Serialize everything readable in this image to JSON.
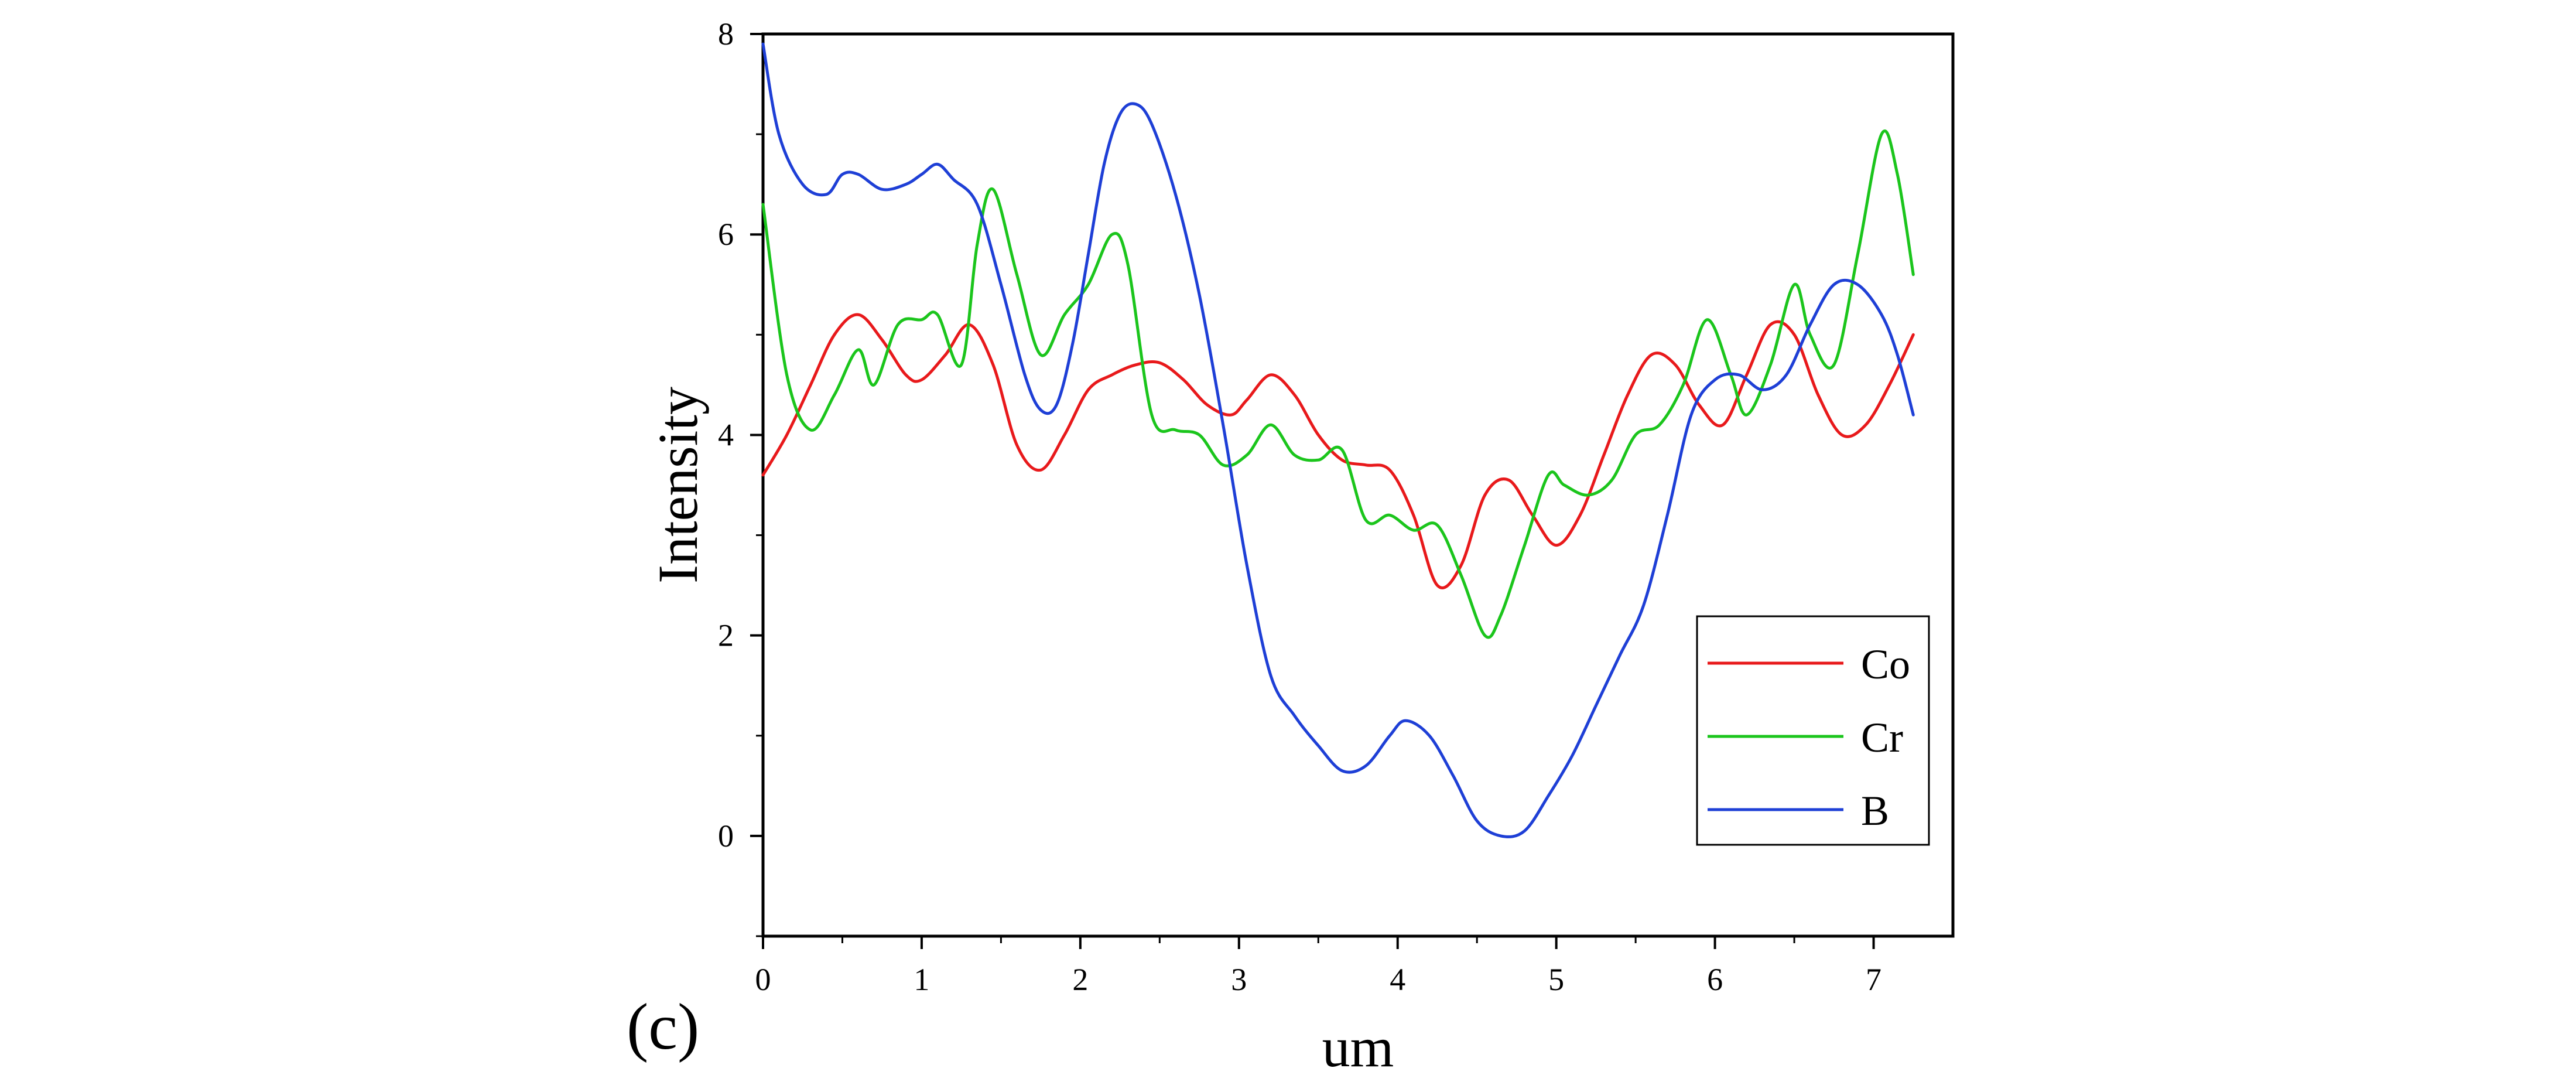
{
  "chart_data": {
    "type": "line",
    "panel_label": "(c)",
    "xlabel": "um",
    "ylabel": "Intensity",
    "xlim": [
      0,
      7.5
    ],
    "ylim": [
      -1,
      8
    ],
    "xticks": [
      0,
      1,
      2,
      3,
      4,
      5,
      6,
      7
    ],
    "yticks": [
      0,
      2,
      4,
      6,
      8
    ],
    "grid": false,
    "legend_position": "bottom-right",
    "series": [
      {
        "name": "Co",
        "color": "#e8191b",
        "x": [
          0,
          0.15,
          0.3,
          0.45,
          0.6,
          0.75,
          0.9,
          1.0,
          1.15,
          1.3,
          1.45,
          1.6,
          1.75,
          1.9,
          2.05,
          2.2,
          2.35,
          2.5,
          2.65,
          2.8,
          2.95,
          3.05,
          3.2,
          3.35,
          3.5,
          3.65,
          3.8,
          3.95,
          4.1,
          4.25,
          4.4,
          4.55,
          4.7,
          4.85,
          5.0,
          5.15,
          5.3,
          5.45,
          5.6,
          5.75,
          5.9,
          6.05,
          6.2,
          6.35,
          6.5,
          6.65,
          6.8,
          6.95,
          7.1,
          7.25
        ],
        "y": [
          3.6,
          4.0,
          4.5,
          5.0,
          5.2,
          4.95,
          4.6,
          4.55,
          4.8,
          5.1,
          4.7,
          3.9,
          3.65,
          4.0,
          4.45,
          4.6,
          4.7,
          4.72,
          4.55,
          4.3,
          4.2,
          4.35,
          4.6,
          4.4,
          4.0,
          3.75,
          3.7,
          3.65,
          3.2,
          2.5,
          2.7,
          3.4,
          3.55,
          3.2,
          2.9,
          3.2,
          3.8,
          4.4,
          4.8,
          4.7,
          4.3,
          4.1,
          4.6,
          5.1,
          5.0,
          4.4,
          4.0,
          4.1,
          4.5,
          5.0
        ]
      },
      {
        "name": "Cr",
        "color": "#1bc51c",
        "x": [
          0,
          0.15,
          0.3,
          0.45,
          0.6,
          0.7,
          0.85,
          1.0,
          1.1,
          1.25,
          1.35,
          1.45,
          1.6,
          1.75,
          1.9,
          2.05,
          2.2,
          2.3,
          2.45,
          2.6,
          2.75,
          2.9,
          3.05,
          3.2,
          3.35,
          3.5,
          3.65,
          3.8,
          3.95,
          4.1,
          4.25,
          4.4,
          4.55,
          4.65,
          4.8,
          4.95,
          5.05,
          5.2,
          5.35,
          5.5,
          5.65,
          5.8,
          5.95,
          6.1,
          6.2,
          6.35,
          6.5,
          6.6,
          6.75,
          6.9,
          7.05,
          7.15,
          7.25
        ],
        "y": [
          6.3,
          4.6,
          4.05,
          4.4,
          4.85,
          4.5,
          5.1,
          5.15,
          5.2,
          4.7,
          5.9,
          6.45,
          5.6,
          4.8,
          5.2,
          5.5,
          6.0,
          5.7,
          4.2,
          4.05,
          4.0,
          3.7,
          3.8,
          4.1,
          3.8,
          3.75,
          3.85,
          3.15,
          3.2,
          3.05,
          3.1,
          2.6,
          2.0,
          2.2,
          2.9,
          3.6,
          3.5,
          3.4,
          3.55,
          4.0,
          4.1,
          4.5,
          5.15,
          4.6,
          4.2,
          4.7,
          5.5,
          5.0,
          4.7,
          5.8,
          7.0,
          6.6,
          5.6
        ]
      },
      {
        "name": "B",
        "color": "#1e3fd6",
        "x": [
          0,
          0.1,
          0.25,
          0.4,
          0.5,
          0.6,
          0.75,
          0.9,
          1.0,
          1.1,
          1.2,
          1.35,
          1.5,
          1.65,
          1.75,
          1.85,
          1.95,
          2.05,
          2.15,
          2.25,
          2.35,
          2.45,
          2.6,
          2.75,
          2.9,
          3.05,
          3.2,
          3.35,
          3.5,
          3.65,
          3.8,
          3.95,
          4.05,
          4.2,
          4.35,
          4.5,
          4.65,
          4.8,
          4.95,
          5.1,
          5.25,
          5.4,
          5.55,
          5.7,
          5.85,
          6.0,
          6.15,
          6.3,
          6.45,
          6.6,
          6.75,
          6.9,
          7.05,
          7.15,
          7.25
        ],
        "y": [
          7.9,
          7.0,
          6.5,
          6.4,
          6.6,
          6.6,
          6.45,
          6.5,
          6.6,
          6.7,
          6.55,
          6.3,
          5.5,
          4.6,
          4.25,
          4.3,
          4.9,
          5.8,
          6.7,
          7.2,
          7.3,
          7.1,
          6.4,
          5.4,
          4.1,
          2.7,
          1.6,
          1.2,
          0.9,
          0.65,
          0.7,
          1.0,
          1.15,
          1.0,
          0.6,
          0.15,
          0.0,
          0.05,
          0.4,
          0.8,
          1.3,
          1.8,
          2.3,
          3.2,
          4.2,
          4.55,
          4.6,
          4.45,
          4.6,
          5.1,
          5.5,
          5.5,
          5.2,
          4.8,
          4.2
        ]
      }
    ]
  }
}
